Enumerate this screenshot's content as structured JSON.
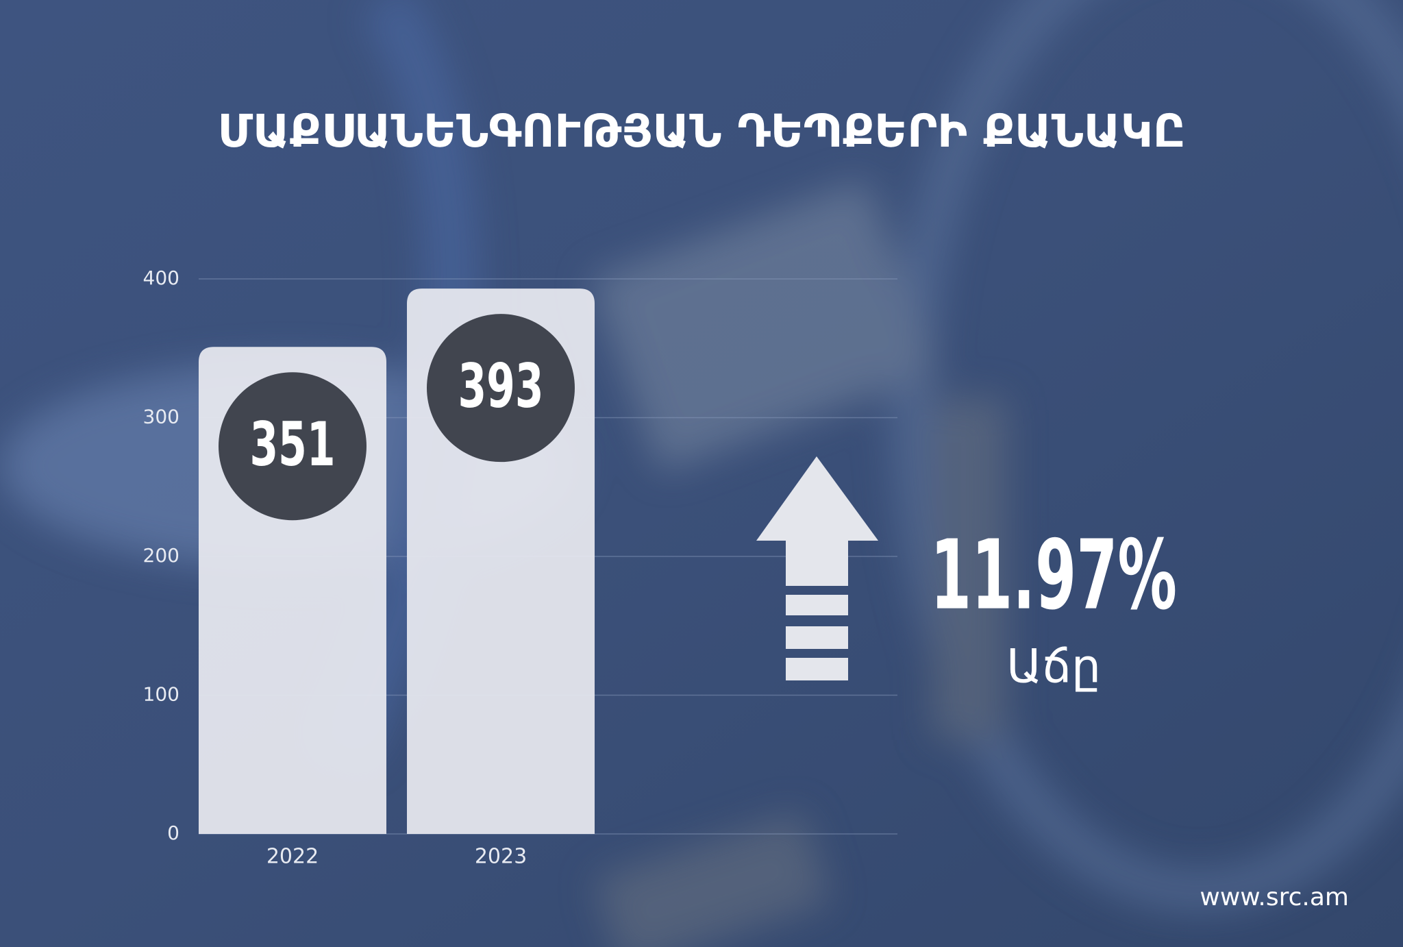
{
  "chart_data": {
    "type": "bar",
    "title": "ՄԱՔՍԱՆԵՆԳՈՒԹՅԱՆ ԴԵՊՔԵՐԻ ՔԱՆԱԿԸ",
    "categories": [
      "2022",
      "2023"
    ],
    "values": [
      351,
      393
    ],
    "color": "#e8eaf0",
    "value_badge_color": "#41454f",
    "ylim": [
      0,
      400
    ],
    "yticks": [
      0,
      100,
      200,
      300,
      400
    ],
    "grid": true,
    "annotations": {
      "growth": "11.97%",
      "growth_caption": "Աճը"
    },
    "footer": "www.src.am"
  }
}
